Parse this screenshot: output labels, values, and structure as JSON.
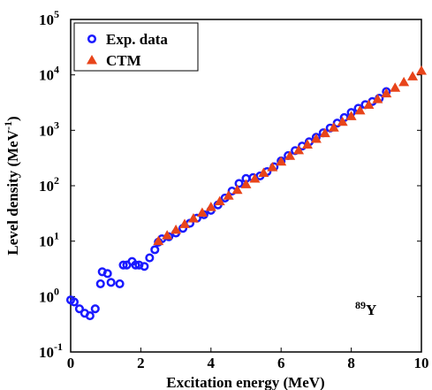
{
  "chart_data": {
    "type": "scatter",
    "log_y": true,
    "xlabel": "Excitation energy (MeV)",
    "ylabel": "Level density (MeV",
    "ylabel_sup": "-1",
    "ylabel_end": ")",
    "annotation_sup": "89",
    "annotation": "Y",
    "xlim": [
      0,
      10
    ],
    "xticks": [
      0,
      2,
      4,
      6,
      8,
      10
    ],
    "ylim": [
      0.1,
      100000
    ],
    "yticks": [
      {
        "value": 0.1,
        "label": "10",
        "exponent": "-1"
      },
      {
        "value": 1,
        "label": "10",
        "exponent": "0"
      },
      {
        "value": 10,
        "label": "10",
        "exponent": "1"
      },
      {
        "value": 100,
        "label": "10",
        "exponent": "2"
      },
      {
        "value": 1000,
        "label": "10",
        "exponent": "3"
      },
      {
        "value": 10000,
        "label": "10",
        "exponent": "4"
      },
      {
        "value": 100000,
        "label": "10",
        "exponent": "5"
      }
    ],
    "legend": "upper left",
    "series": [
      {
        "name": "Exp. data",
        "color": "#1a1aff",
        "marker": "circle",
        "x": [
          0,
          0.1,
          0.25,
          0.4,
          0.55,
          0.7,
          0.85,
          0.9,
          1.05,
          1.15,
          1.4,
          1.5,
          1.6,
          1.75,
          1.85,
          1.95,
          2.1,
          2.25,
          2.4,
          2.5,
          2.6,
          2.8,
          3.0,
          3.2,
          3.4,
          3.6,
          3.8,
          4.0,
          4.2,
          4.4,
          4.6,
          4.8,
          5.0,
          5.2,
          5.4,
          5.6,
          5.8,
          6.0,
          6.2,
          6.4,
          6.6,
          6.8,
          7.0,
          7.2,
          7.4,
          7.6,
          7.8,
          8.0,
          8.2,
          8.4,
          8.6,
          8.8,
          9.0
        ],
        "values": [
          0.87,
          0.8,
          0.6,
          0.5,
          0.45,
          0.6,
          1.7,
          2.8,
          2.6,
          1.8,
          1.7,
          3.7,
          3.7,
          4.3,
          3.7,
          3.7,
          3.5,
          5,
          7,
          9.6,
          11,
          12,
          14,
          17,
          21,
          26,
          30,
          36,
          45,
          60,
          80,
          110,
          135,
          140,
          150,
          180,
          220,
          280,
          350,
          430,
          520,
          620,
          750,
          900,
          1100,
          1350,
          1700,
          2100,
          2500,
          2900,
          3300,
          3800,
          5000
        ]
      },
      {
        "name": "CTM",
        "color": "#e8441a",
        "marker": "triangle",
        "x": [
          2.5,
          2.75,
          3,
          3.25,
          3.5,
          3.75,
          4,
          4.25,
          4.5,
          4.75,
          5,
          5.25,
          5.5,
          5.75,
          6,
          6.25,
          6.5,
          6.75,
          7,
          7.25,
          7.5,
          7.75,
          8,
          8.25,
          8.5,
          8.75,
          9,
          9.25,
          9.5,
          9.75,
          10
        ],
        "values": [
          10,
          12.7,
          16,
          20.3,
          25.7,
          32.6,
          41.3,
          52.3,
          66.1,
          83.8,
          106,
          134,
          170,
          215,
          272,
          345,
          437,
          553,
          700,
          886,
          1122,
          1421,
          1799,
          2278,
          2884,
          3652,
          4624,
          5855,
          7413,
          9387,
          11885
        ]
      }
    ]
  }
}
